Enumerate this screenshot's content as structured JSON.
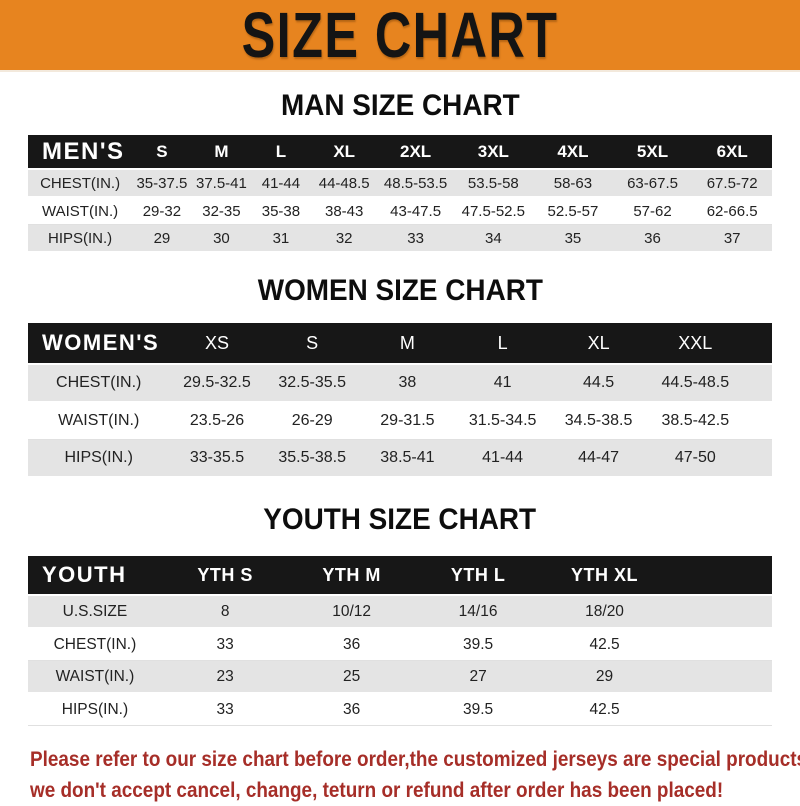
{
  "banner": {
    "title": "SIZE CHART"
  },
  "colors": {
    "banner_bg": "#E7841F",
    "banner_text": "#141414",
    "header_bg": "#171717",
    "header_text": "#FFFFFF",
    "row_alt": "#E4E4E4",
    "disclaimer_text": "#A62E28"
  },
  "sections": [
    {
      "heading": "MAN SIZE CHART",
      "table": {
        "label": "MEN'S",
        "columns": [
          "S",
          "M",
          "L",
          "XL",
          "2XL",
          "3XL",
          "4XL",
          "5XL",
          "6XL"
        ],
        "rows": [
          {
            "label": "CHEST(IN.)",
            "values": [
              "35-37.5",
              "37.5-41",
              "41-44",
              "44-48.5",
              "48.5-53.5",
              "53.5-58",
              "58-63",
              "63-67.5",
              "67.5-72"
            ]
          },
          {
            "label": "WAIST(IN.)",
            "values": [
              "29-32",
              "32-35",
              "35-38",
              "38-43",
              "43-47.5",
              "47.5-52.5",
              "52.5-57",
              "57-62",
              "62-66.5"
            ]
          },
          {
            "label": "HIPS(IN.)",
            "values": [
              "29",
              "30",
              "31",
              "32",
              "33",
              "34",
              "35",
              "36",
              "37"
            ]
          }
        ]
      }
    },
    {
      "heading": "WOMEN SIZE CHART",
      "table": {
        "label": "WOMEN'S",
        "columns": [
          "XS",
          "S",
          "M",
          "L",
          "XL",
          "XXL"
        ],
        "rows": [
          {
            "label": "CHEST(IN.)",
            "values": [
              "29.5-32.5",
              "32.5-35.5",
              "38",
              "41",
              "44.5",
              "44.5-48.5"
            ]
          },
          {
            "label": "WAIST(IN.)",
            "values": [
              "23.5-26",
              "26-29",
              "29-31.5",
              "31.5-34.5",
              "34.5-38.5",
              "38.5-42.5"
            ]
          },
          {
            "label": "HIPS(IN.)",
            "values": [
              "33-35.5",
              "35.5-38.5",
              "38.5-41",
              "41-44",
              "44-47",
              "47-50"
            ]
          }
        ]
      }
    },
    {
      "heading": "YOUTH SIZE CHART",
      "table": {
        "label": "YOUTH",
        "columns": [
          "YTH S",
          "YTH M",
          "YTH L",
          "YTH XL"
        ],
        "rows": [
          {
            "label": "U.S.SIZE",
            "values": [
              "8",
              "10/12",
              "14/16",
              "18/20"
            ]
          },
          {
            "label": "CHEST(IN.)",
            "values": [
              "33",
              "36",
              "39.5",
              "42.5"
            ]
          },
          {
            "label": "WAIST(IN.)",
            "values": [
              "23",
              "25",
              "27",
              "29"
            ]
          },
          {
            "label": "HIPS(IN.)",
            "values": [
              "33",
              "36",
              "39.5",
              "42.5"
            ]
          }
        ]
      }
    }
  ],
  "disclaimer": {
    "lines": [
      "Please refer to our size chart before order,the customized jerseys are special products,",
      "we don't accept cancel, change, teturn or refund after order has been placed!"
    ]
  }
}
